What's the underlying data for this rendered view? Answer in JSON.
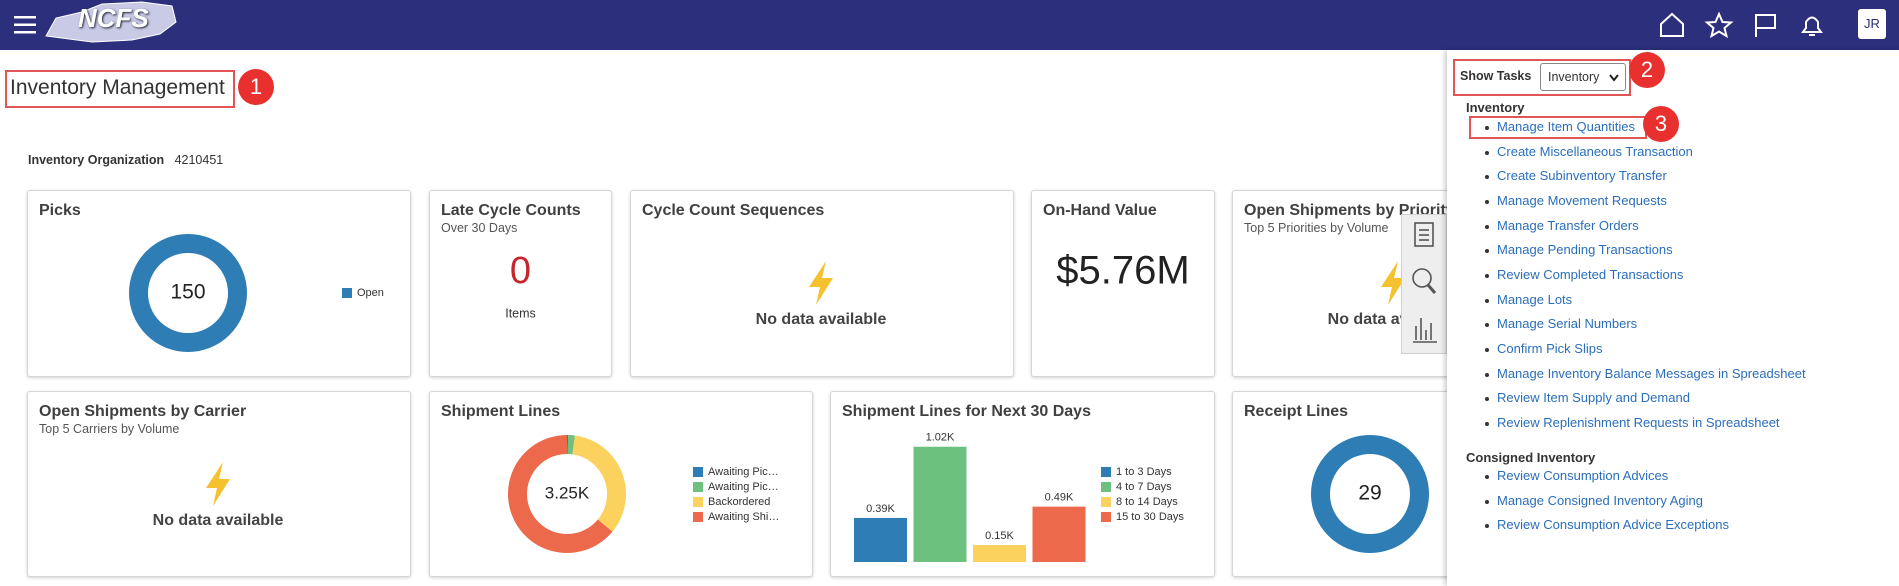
{
  "header": {
    "logo": "NCFS",
    "user_initials": "JR"
  },
  "page": {
    "title": "Inventory Management",
    "organization_label": "Inventory Organization",
    "organization_value": "4210451"
  },
  "annotations": [
    "1",
    "2",
    "3"
  ],
  "tiles": [
    {
      "title": "Picks",
      "chart": {
        "type": "donut",
        "categories": [
          "Open"
        ],
        "values": [
          150
        ],
        "colors": [
          "#2e7db5"
        ]
      }
    },
    {
      "title": "Late Cycle Counts",
      "subtitle": "Over 30 Days",
      "metric": 0,
      "metric_unit": "Items"
    },
    {
      "title": "Cycle Count Sequences",
      "message": "No data available"
    },
    {
      "title": "On-Hand Value",
      "metric": "$5.76M"
    },
    {
      "title": "Open Shipments by Priority",
      "subtitle": "Top 5 Priorities by Volume",
      "message": "No data available"
    },
    {
      "title": "Open Shipments by Carrier",
      "subtitle": "Top 5 Carriers by Volume",
      "message": "No data available"
    },
    {
      "title": "Shipment Lines",
      "chart": {
        "type": "donut",
        "categories": [
          "Awaiting Pic…",
          "Awaiting Pic…",
          "Backordered",
          "Awaiting Shi…"
        ],
        "values": [
          0.01,
          0.06,
          1.1,
          2.08
        ],
        "colors": [
          "#2e7db5",
          "#6cc17e",
          "#fbd25e",
          "#ec6a4b"
        ],
        "center_label": "3.25K"
      }
    },
    {
      "title": "Shipment Lines for Next 30 Days",
      "chart": {
        "type": "bar",
        "categories": [
          "1 to 3 Days",
          "4 to 7 Days",
          "8 to 14 Days",
          "15 to 30 Days"
        ],
        "values": [
          0.39,
          1.02,
          0.15,
          0.49
        ],
        "value_labels": [
          "0.39K",
          "1.02K",
          "0.15K",
          "0.49K"
        ],
        "colors": [
          "#2e7db5",
          "#6cc17e",
          "#fbd25e",
          "#ec6a4b"
        ]
      }
    },
    {
      "title": "Receipt Lines",
      "chart": {
        "type": "donut",
        "categories": [
          null
        ],
        "values": [
          29
        ],
        "colors": [
          "#2e7db5"
        ]
      }
    }
  ],
  "tasks": {
    "label": "Show Tasks",
    "selected": "Inventory",
    "groups": [
      {
        "heading": "Inventory",
        "links": [
          "Manage Item Quantities",
          "Create Miscellaneous Transaction",
          "Create Subinventory Transfer",
          "Manage Movement Requests",
          "Manage Transfer Orders",
          "Manage Pending Transactions",
          "Review Completed Transactions",
          "Manage Lots",
          "Manage Serial Numbers",
          "Confirm Pick Slips",
          "Manage Inventory Balance Messages in Spreadsheet",
          "Review Item Supply and Demand",
          "Review Replenishment Requests in Spreadsheet"
        ]
      },
      {
        "heading": "Consigned Inventory",
        "links": [
          "Review Consumption Advices",
          "Manage Consigned Inventory Aging",
          "Review Consumption Advice Exceptions"
        ]
      }
    ]
  }
}
